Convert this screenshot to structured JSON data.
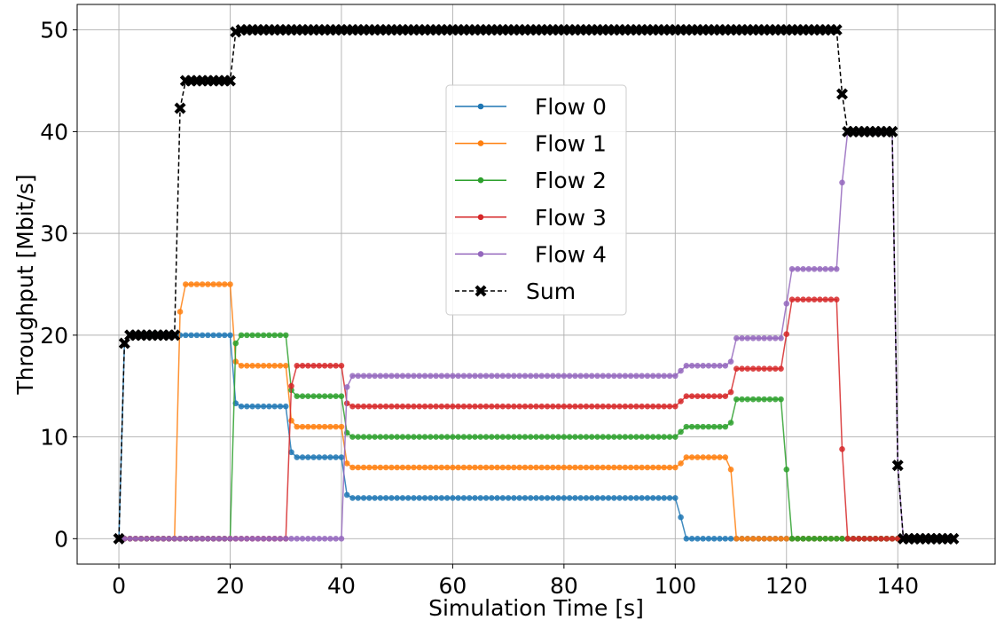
{
  "chart_data": {
    "type": "line",
    "xlabel": "Simulation Time [s]",
    "ylabel": "Throughput [Mbit/s]",
    "xlim": [
      -7.5,
      157.5
    ],
    "ylim": [
      -2.5,
      52.5
    ],
    "xticks": [
      0,
      20,
      40,
      60,
      80,
      100,
      120,
      140
    ],
    "yticks": [
      0,
      10,
      20,
      30,
      40,
      50
    ],
    "grid": true,
    "legend_position": "center",
    "sampling": {
      "start": 0,
      "end": 150,
      "step": 1
    },
    "series": [
      {
        "name": "Flow 0",
        "color": "#1f77b4",
        "marker": "circle",
        "linestyle": "solid",
        "keypoints": [
          [
            0,
            0
          ],
          [
            1,
            19.2
          ],
          [
            2,
            20
          ],
          [
            20,
            20
          ],
          [
            21,
            13.3
          ],
          [
            22,
            13
          ],
          [
            30,
            13
          ],
          [
            31,
            8.5
          ],
          [
            32,
            8
          ],
          [
            40,
            8
          ],
          [
            41,
            4.3
          ],
          [
            42,
            4
          ],
          [
            100,
            4
          ],
          [
            101,
            2.1
          ],
          [
            102,
            0
          ],
          [
            150,
            0
          ]
        ]
      },
      {
        "name": "Flow 1",
        "color": "#ff7f0e",
        "marker": "circle",
        "linestyle": "solid",
        "keypoints": [
          [
            0,
            0
          ],
          [
            10,
            0
          ],
          [
            11,
            22.3
          ],
          [
            12,
            25
          ],
          [
            20,
            25
          ],
          [
            21,
            17.4
          ],
          [
            22,
            17
          ],
          [
            30,
            17
          ],
          [
            31,
            11.6
          ],
          [
            32,
            11
          ],
          [
            40,
            11
          ],
          [
            41,
            7.4
          ],
          [
            42,
            7
          ],
          [
            100,
            7
          ],
          [
            101,
            7.4
          ],
          [
            102,
            8
          ],
          [
            109,
            8
          ],
          [
            110,
            6.8
          ],
          [
            111,
            0
          ],
          [
            150,
            0
          ]
        ]
      },
      {
        "name": "Flow 2",
        "color": "#2ca02c",
        "marker": "circle",
        "linestyle": "solid",
        "keypoints": [
          [
            0,
            0
          ],
          [
            20,
            0
          ],
          [
            21,
            19.2
          ],
          [
            22,
            20
          ],
          [
            30,
            20
          ],
          [
            31,
            14.6
          ],
          [
            32,
            14
          ],
          [
            40,
            14
          ],
          [
            41,
            10.4
          ],
          [
            42,
            10
          ],
          [
            100,
            10
          ],
          [
            101,
            10.5
          ],
          [
            102,
            11
          ],
          [
            109,
            11
          ],
          [
            110,
            11.4
          ],
          [
            111,
            13.7
          ],
          [
            119,
            13.7
          ],
          [
            120,
            6.8
          ],
          [
            121,
            0
          ],
          [
            150,
            0
          ]
        ]
      },
      {
        "name": "Flow 3",
        "color": "#d62728",
        "marker": "circle",
        "linestyle": "solid",
        "keypoints": [
          [
            0,
            0
          ],
          [
            30,
            0
          ],
          [
            31,
            15
          ],
          [
            32,
            17
          ],
          [
            40,
            17
          ],
          [
            41,
            13.3
          ],
          [
            42,
            13
          ],
          [
            100,
            13
          ],
          [
            101,
            13.5
          ],
          [
            102,
            14
          ],
          [
            109,
            14
          ],
          [
            110,
            14.4
          ],
          [
            111,
            16.7
          ],
          [
            119,
            16.7
          ],
          [
            120,
            20.1
          ],
          [
            121,
            23.5
          ],
          [
            129,
            23.5
          ],
          [
            130,
            8.8
          ],
          [
            131,
            0
          ],
          [
            150,
            0
          ]
        ]
      },
      {
        "name": "Flow 4",
        "color": "#9467bd",
        "marker": "circle",
        "linestyle": "solid",
        "keypoints": [
          [
            0,
            0
          ],
          [
            40,
            0
          ],
          [
            41,
            14.9
          ],
          [
            42,
            16
          ],
          [
            100,
            16
          ],
          [
            101,
            16.5
          ],
          [
            102,
            17
          ],
          [
            109,
            17
          ],
          [
            110,
            17.4
          ],
          [
            111,
            19.7
          ],
          [
            119,
            19.7
          ],
          [
            120,
            23.1
          ],
          [
            121,
            26.5
          ],
          [
            129,
            26.5
          ],
          [
            130,
            35
          ],
          [
            131,
            40
          ],
          [
            139,
            40
          ],
          [
            140,
            7.2
          ],
          [
            141,
            0
          ],
          [
            150,
            0
          ]
        ]
      },
      {
        "name": "Sum",
        "color": "#000000",
        "marker": "x-filled",
        "linestyle": "dashed",
        "keypoints": [
          [
            0,
            0
          ],
          [
            1,
            19.2
          ],
          [
            2,
            20
          ],
          [
            10,
            20
          ],
          [
            11,
            42.3
          ],
          [
            12,
            45
          ],
          [
            20,
            45
          ],
          [
            21,
            49.8
          ],
          [
            22,
            50
          ],
          [
            129,
            50
          ],
          [
            130,
            43.7
          ],
          [
            131,
            40
          ],
          [
            139,
            40
          ],
          [
            140,
            7.2
          ],
          [
            141,
            0
          ],
          [
            150,
            0
          ]
        ]
      }
    ]
  }
}
